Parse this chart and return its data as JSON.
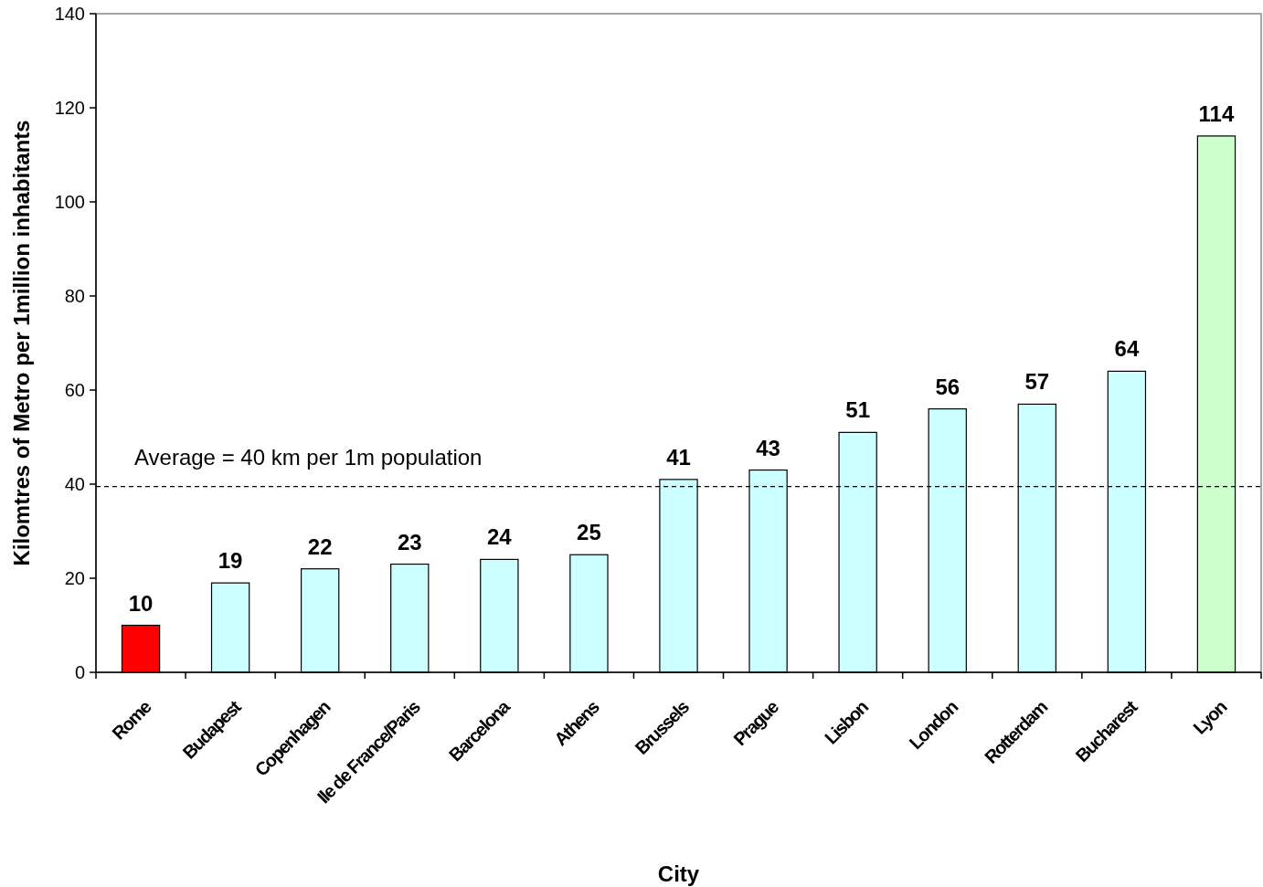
{
  "chart_data": {
    "type": "bar",
    "xlabel": "City",
    "ylabel": "Kilomtres of Metro per 1million inhabitants",
    "categories": [
      "Rome",
      "Budapest",
      "Copenhagen",
      "Ile de France/Paris",
      "Barcelona",
      "Athens",
      "Brussels",
      "Prague",
      "Lisbon",
      "London",
      "Rotterdam",
      "Bucharest",
      "Lyon"
    ],
    "values": [
      10,
      19,
      22,
      23,
      24,
      25,
      41,
      43,
      51,
      56,
      57,
      64,
      114
    ],
    "colors": [
      "#ff0000",
      "#ccffff",
      "#ccffff",
      "#ccffff",
      "#ccffff",
      "#ccffff",
      "#ccffff",
      "#ccffff",
      "#ccffff",
      "#ccffff",
      "#ccffff",
      "#ccffff",
      "#ccffcc"
    ],
    "ylim": [
      0,
      140
    ],
    "yticks": [
      0,
      20,
      40,
      60,
      80,
      100,
      120,
      140
    ],
    "data_labels": true,
    "grid": false,
    "ref_lines": [
      {
        "axis": "y",
        "value": 39.5,
        "label": "Average = 40 km per 1m population",
        "color": "#000000",
        "line_style": "dashed"
      }
    ]
  }
}
